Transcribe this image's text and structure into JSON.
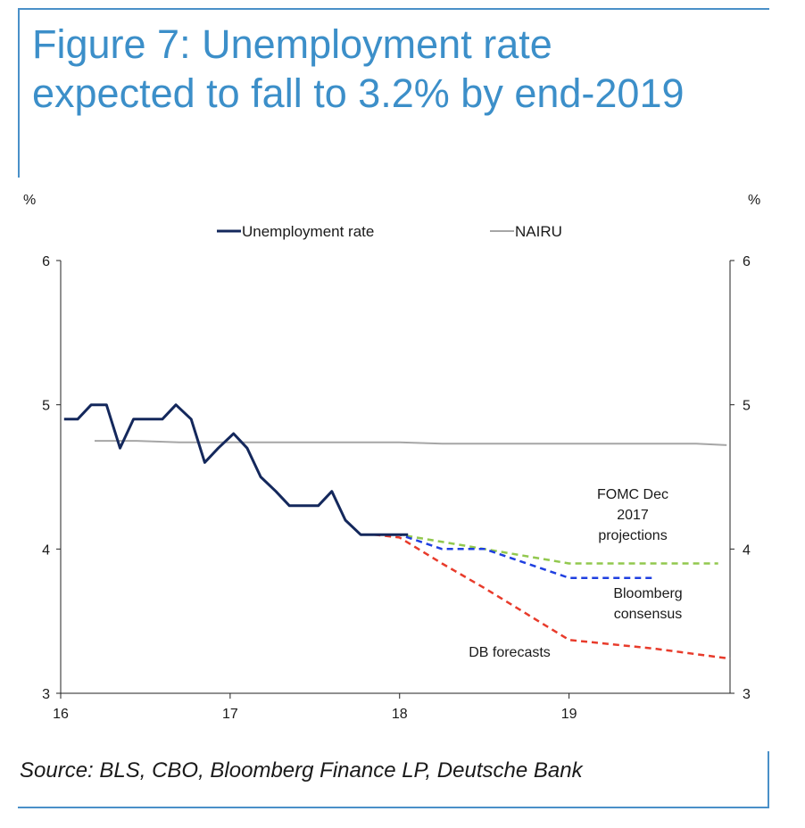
{
  "title": "Figure 7: Unemployment rate expected to fall to 3.2% by end-2019",
  "source": "Source: BLS, CBO, Bloomberg Finance LP, Deutsche Bank",
  "colors": {
    "accent": "#3c8fc9",
    "unemployment": "#14285c",
    "nairu": "#a6a6a6",
    "fomc": "#92c84e",
    "bloomberg": "#1f3fe0",
    "db": "#e83b2b"
  },
  "chart_data": {
    "type": "line",
    "left_unit": "%",
    "right_unit": "%",
    "xlim": [
      16,
      19.95
    ],
    "ylim": [
      3,
      6
    ],
    "x_ticks": [
      "16",
      "17",
      "18",
      "19"
    ],
    "y_ticks": [
      "3",
      "4",
      "5",
      "6"
    ],
    "legend": [
      "Unemployment rate",
      "NAIRU"
    ],
    "legend_position": "top-center",
    "grid": false,
    "series": [
      {
        "name": "Unemployment rate",
        "style": "solid",
        "x": [
          16.02,
          16.1,
          16.18,
          16.27,
          16.35,
          16.43,
          16.52,
          16.6,
          16.68,
          16.77,
          16.85,
          16.93,
          17.02,
          17.1,
          17.18,
          17.27,
          17.35,
          17.43,
          17.52,
          17.6,
          17.68,
          17.77,
          17.85,
          17.93,
          18.05
        ],
        "y": [
          4.9,
          4.9,
          5.0,
          5.0,
          4.7,
          4.9,
          4.9,
          4.9,
          5.0,
          4.9,
          4.6,
          4.7,
          4.8,
          4.7,
          4.5,
          4.4,
          4.3,
          4.3,
          4.3,
          4.4,
          4.2,
          4.1,
          4.1,
          4.1,
          4.1
        ]
      },
      {
        "name": "NAIRU",
        "style": "solid",
        "x": [
          16.2,
          16.45,
          16.7,
          17.0,
          17.5,
          18.0,
          18.25,
          18.5,
          19.0,
          19.5,
          19.75,
          19.93
        ],
        "y": [
          4.75,
          4.75,
          4.74,
          4.74,
          4.74,
          4.74,
          4.73,
          4.73,
          4.73,
          4.73,
          4.73,
          4.72
        ]
      },
      {
        "name": "FOMC Dec 2017 projections",
        "style": "dashed",
        "x": [
          17.85,
          18.0,
          18.5,
          19.0,
          19.5,
          19.88
        ],
        "y": [
          4.1,
          4.1,
          4.0,
          3.9,
          3.9,
          3.9
        ]
      },
      {
        "name": "Bloomberg consensus",
        "style": "dashed",
        "x": [
          17.85,
          18.0,
          18.25,
          18.5,
          18.75,
          19.0,
          19.25,
          19.5
        ],
        "y": [
          4.1,
          4.1,
          4.0,
          4.0,
          3.9,
          3.8,
          3.8,
          3.8
        ]
      },
      {
        "name": "DB forecasts",
        "style": "dashed",
        "x": [
          17.85,
          18.0,
          18.25,
          18.5,
          18.75,
          19.0,
          19.5,
          19.95
        ],
        "y": [
          4.1,
          4.08,
          3.9,
          3.73,
          3.55,
          3.37,
          3.31,
          3.24
        ]
      }
    ],
    "annotations": [
      {
        "lines": [
          "FOMC Dec",
          "2017",
          "projections"
        ]
      },
      {
        "lines": [
          "Bloomberg",
          "consensus"
        ]
      },
      {
        "lines": [
          "DB forecasts"
        ]
      }
    ]
  }
}
